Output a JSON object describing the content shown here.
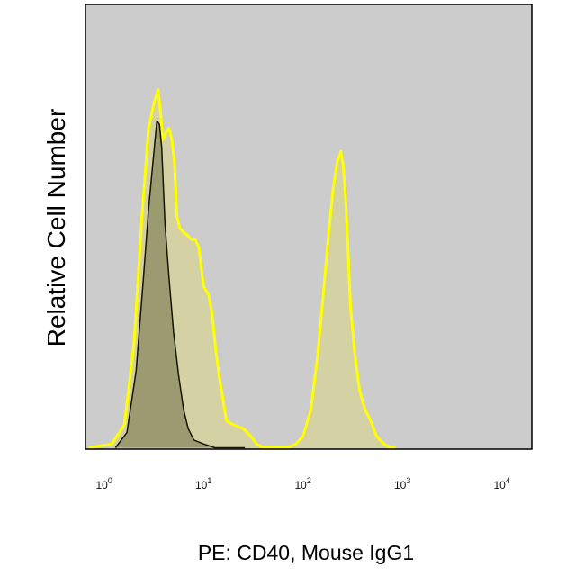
{
  "chart_data": {
    "type": "area",
    "title": "",
    "xlabel": "PE: CD40, Mouse IgG1",
    "ylabel": "Relative Cell Number",
    "x_scale": "log",
    "xlim": [
      0.65,
      20000
    ],
    "ylim": [
      0,
      1
    ],
    "grid": false,
    "x_ticks": [
      {
        "base": "10",
        "exp": "0"
      },
      {
        "base": "10",
        "exp": "1"
      },
      {
        "base": "10",
        "exp": "2"
      },
      {
        "base": "10",
        "exp": "3"
      },
      {
        "base": "10",
        "exp": "4"
      }
    ],
    "colors": {
      "plot_background": "#cccccc",
      "frame": "#000000",
      "stained_fill": "#d4d2a4",
      "stained_line": "#ffff00",
      "control_fill": "#9c9a70",
      "control_line": "#141400"
    },
    "series": [
      {
        "x": [
          0.7,
          1.2,
          1.6,
          2.0,
          2.4,
          2.8,
          3.2,
          3.5,
          3.7,
          3.9,
          4.2,
          4.5,
          4.8,
          5.1,
          5.4,
          5.8,
          6.3,
          7.0,
          7.6,
          8.3,
          9.0,
          9.5,
          10.0,
          10.5,
          11.2,
          12.2,
          13.3,
          14.5,
          17.0,
          20.0,
          25.0,
          30.0,
          34.0,
          40.0,
          50.0,
          60.0,
          70.0,
          85.0,
          100.0,
          120.0,
          140.0,
          160.0,
          180.0,
          200.0,
          220.0,
          240.0,
          255.0,
          270.0,
          285.0,
          300.0,
          330.0,
          370.0,
          420.0,
          480.0,
          550.0,
          650.0,
          750.0,
          800.0,
          850.0
        ],
        "values": [
          0.0,
          0.01,
          0.06,
          0.27,
          0.6,
          0.83,
          0.9,
          0.93,
          0.87,
          0.8,
          0.82,
          0.83,
          0.8,
          0.74,
          0.6,
          0.57,
          0.56,
          0.55,
          0.54,
          0.54,
          0.52,
          0.47,
          0.42,
          0.41,
          0.4,
          0.35,
          0.25,
          0.18,
          0.07,
          0.06,
          0.05,
          0.03,
          0.01,
          0.0,
          0.0,
          0.0,
          0.0,
          0.01,
          0.03,
          0.1,
          0.24,
          0.4,
          0.55,
          0.67,
          0.74,
          0.77,
          0.73,
          0.63,
          0.5,
          0.37,
          0.25,
          0.15,
          0.1,
          0.07,
          0.03,
          0.01,
          0.0,
          0.0,
          0.0
        ]
      },
      {
        "x": [
          1.3,
          1.7,
          2.1,
          2.5,
          2.8,
          3.2,
          3.4,
          3.6,
          3.8,
          4.1,
          4.5,
          5.0,
          5.6,
          6.3,
          7.0,
          8.0,
          10.0,
          13.0,
          17.0,
          22.0,
          26.0
        ],
        "values": [
          0.0,
          0.04,
          0.2,
          0.45,
          0.62,
          0.78,
          0.85,
          0.84,
          0.78,
          0.58,
          0.44,
          0.3,
          0.19,
          0.1,
          0.05,
          0.02,
          0.01,
          0.0,
          0.0,
          0.0,
          0.0
        ]
      }
    ]
  }
}
